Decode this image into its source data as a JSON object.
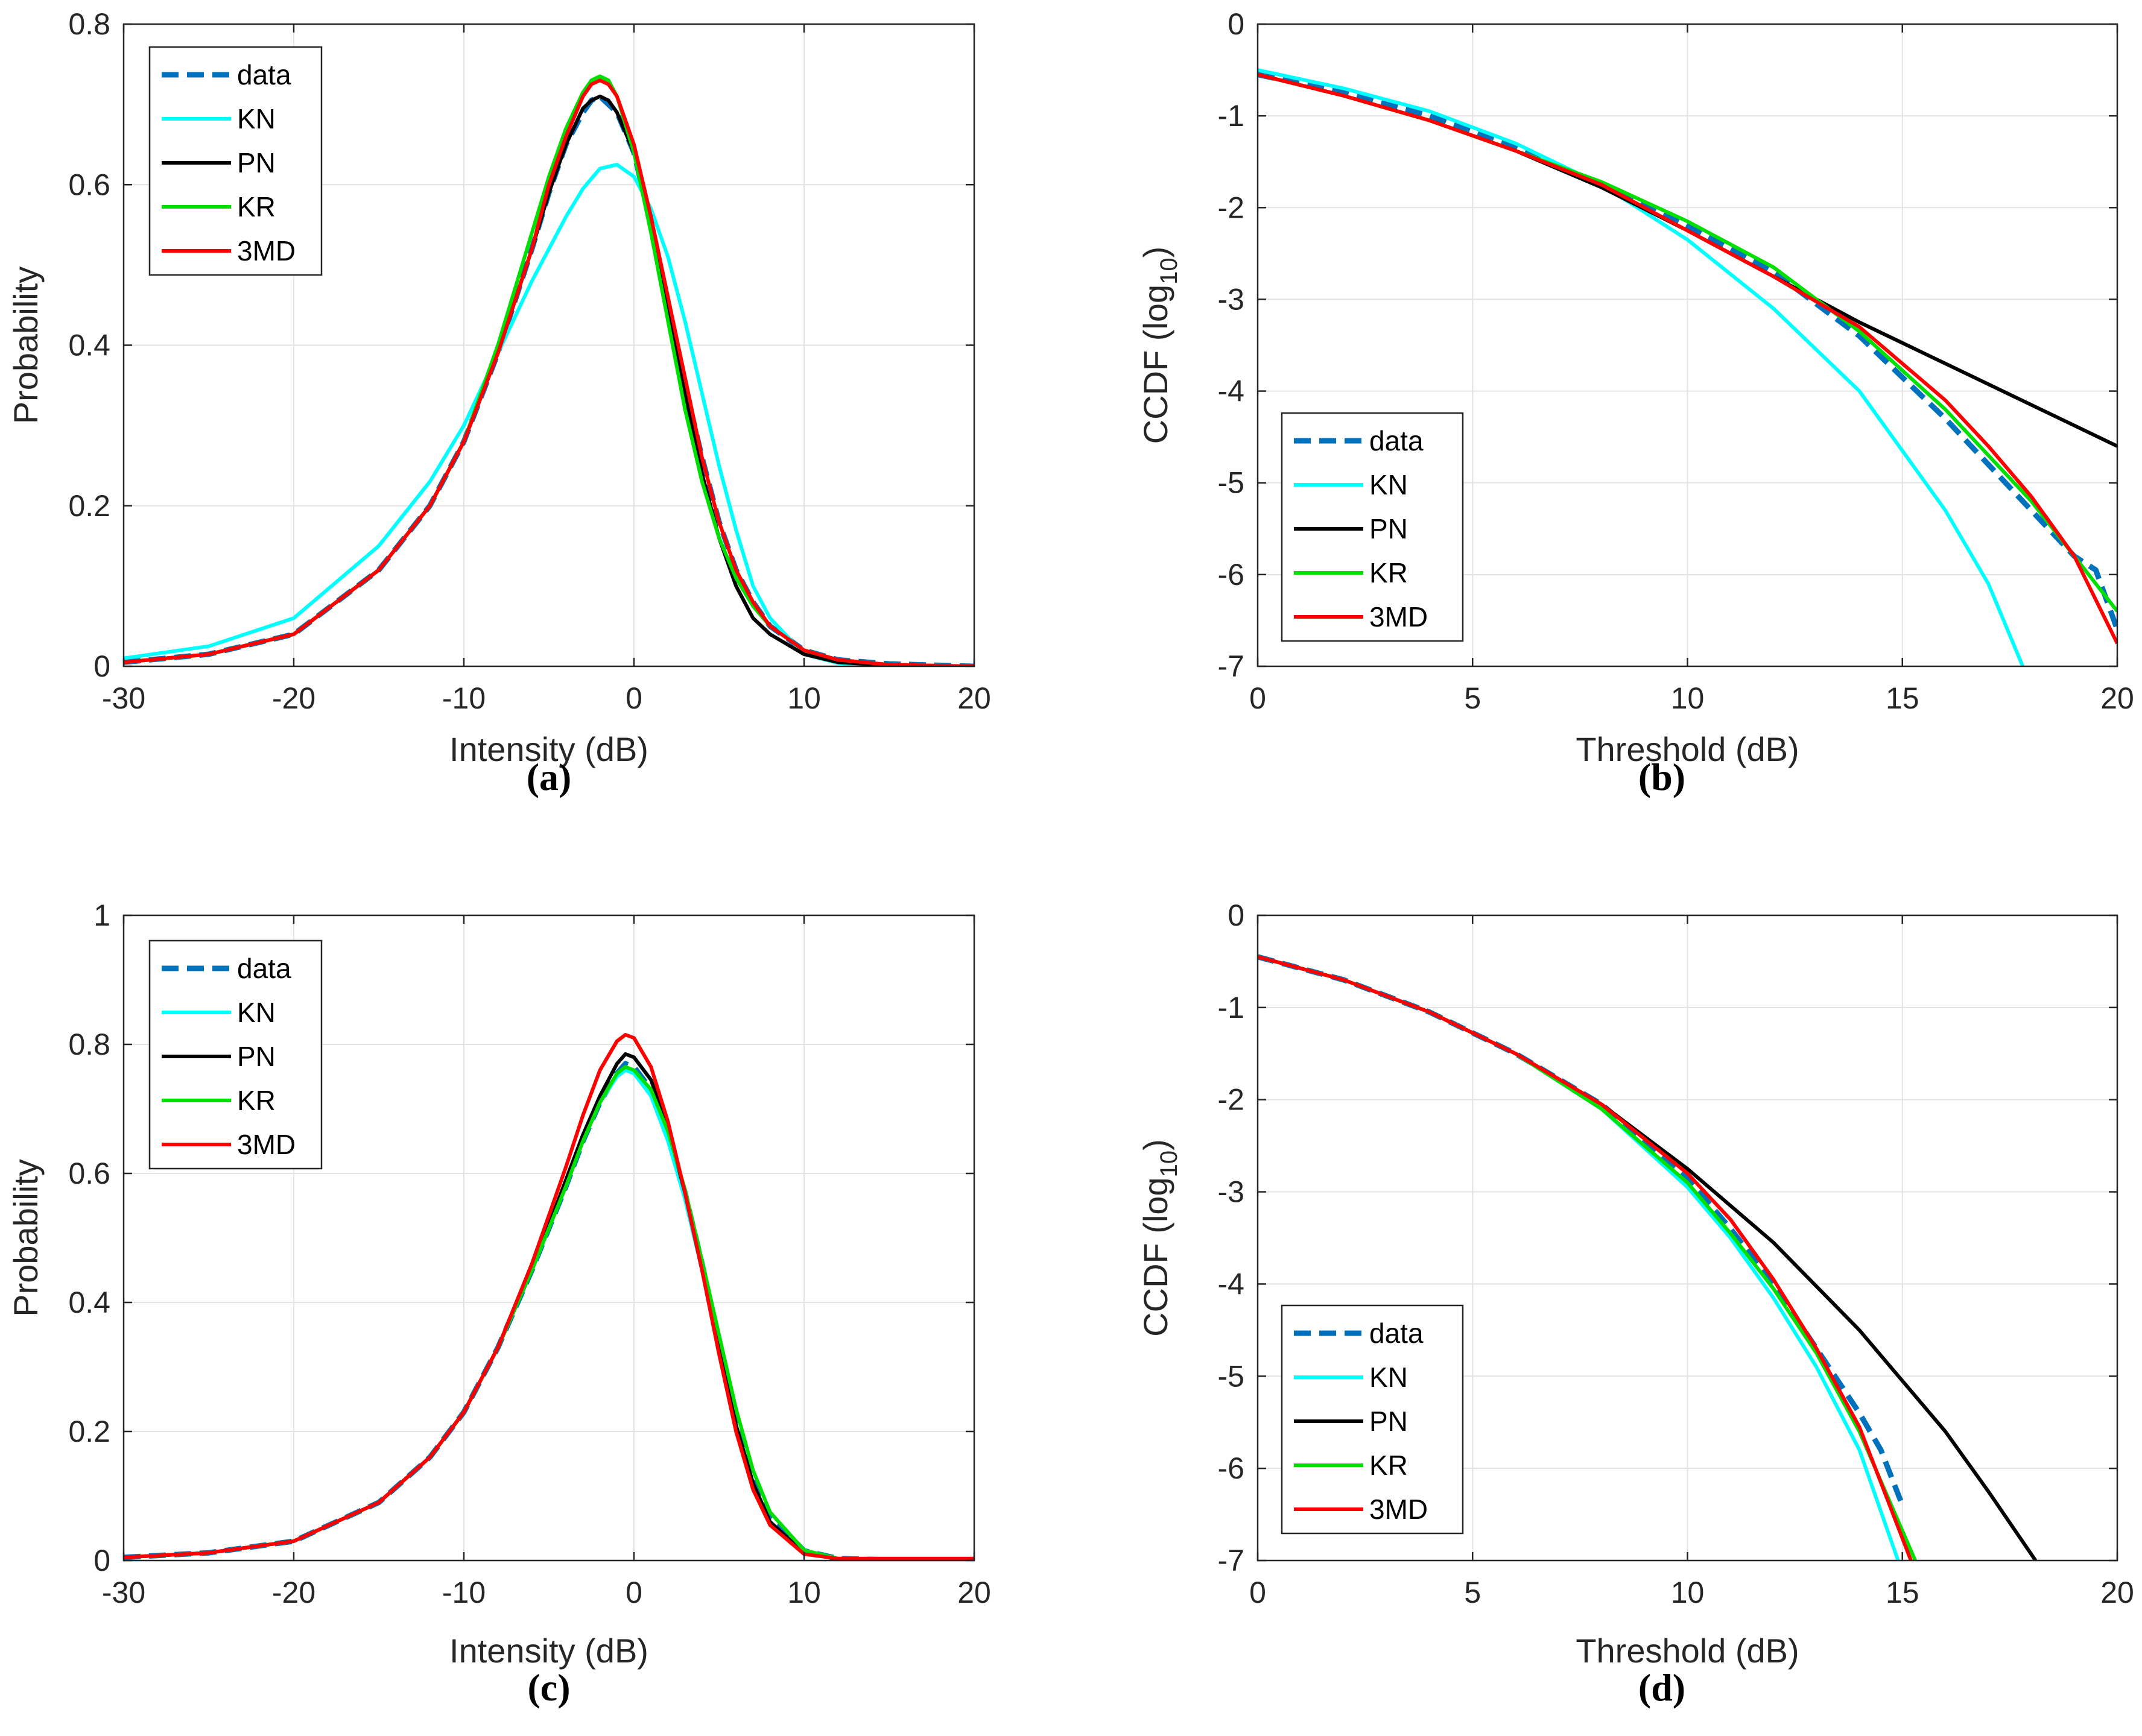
{
  "colors": {
    "data": "#0072BD",
    "KN": "#00FFFF",
    "PN": "#000000",
    "KR": "#00E000",
    "3MD": "#FF0000"
  },
  "chart_data": [
    {
      "panel": "(a)",
      "type": "line",
      "xlabel": "Intensity (dB)",
      "ylabel": "Probability",
      "xlim": [
        -30,
        20
      ],
      "ylim": [
        0,
        0.8
      ],
      "xticks": [
        -30,
        -20,
        -10,
        0,
        10,
        20
      ],
      "yticks": [
        0,
        0.2,
        0.4,
        0.6,
        0.8
      ],
      "xtick_labels": [
        "-30",
        "-20",
        "-10",
        "0",
        "10",
        "20"
      ],
      "ytick_labels": [
        "0",
        "0.2",
        "0.4",
        "0.6",
        "0.8"
      ],
      "grid": true,
      "legend_position": "top-left",
      "legend": [
        "data",
        "KN",
        "PN",
        "KR",
        "3MD"
      ],
      "series": [
        {
          "name": "data",
          "style": "dashed",
          "x": [
            -30,
            -25,
            -20,
            -15,
            -12,
            -10,
            -8,
            -6,
            -5,
            -4,
            -3,
            -2.5,
            -2,
            -1.5,
            -1,
            0,
            1,
            2,
            3,
            4,
            5,
            6,
            7,
            8,
            10,
            12,
            15,
            20
          ],
          "y": [
            0.005,
            0.015,
            0.04,
            0.12,
            0.2,
            0.28,
            0.39,
            0.52,
            0.59,
            0.65,
            0.69,
            0.705,
            0.71,
            0.7,
            0.69,
            0.64,
            0.55,
            0.45,
            0.35,
            0.26,
            0.18,
            0.12,
            0.08,
            0.05,
            0.02,
            0.008,
            0.003,
            0.0
          ]
        },
        {
          "name": "KN",
          "style": "solid",
          "x": [
            -30,
            -25,
            -20,
            -15,
            -12,
            -10,
            -8,
            -6,
            -4,
            -3,
            -2,
            -1,
            0,
            1,
            2,
            3,
            4,
            5,
            6,
            7,
            8,
            10,
            12,
            15,
            20
          ],
          "y": [
            0.01,
            0.025,
            0.06,
            0.15,
            0.23,
            0.3,
            0.39,
            0.48,
            0.56,
            0.595,
            0.62,
            0.625,
            0.61,
            0.57,
            0.51,
            0.43,
            0.34,
            0.25,
            0.17,
            0.1,
            0.06,
            0.015,
            0.004,
            0.001,
            0.0
          ]
        },
        {
          "name": "PN",
          "style": "solid",
          "x": [
            -30,
            -25,
            -20,
            -15,
            -12,
            -10,
            -8,
            -6,
            -5,
            -4,
            -3,
            -2.5,
            -2,
            -1.5,
            -1,
            0,
            1,
            2,
            3,
            4,
            5,
            6,
            7,
            8,
            10,
            12,
            15,
            20
          ],
          "y": [
            0.005,
            0.015,
            0.04,
            0.12,
            0.2,
            0.28,
            0.39,
            0.52,
            0.59,
            0.65,
            0.695,
            0.705,
            0.71,
            0.705,
            0.69,
            0.64,
            0.56,
            0.45,
            0.34,
            0.24,
            0.16,
            0.1,
            0.06,
            0.04,
            0.015,
            0.005,
            0.001,
            0.0
          ]
        },
        {
          "name": "KR",
          "style": "solid",
          "x": [
            -30,
            -25,
            -20,
            -15,
            -12,
            -10,
            -8,
            -6,
            -5,
            -4,
            -3,
            -2.5,
            -2,
            -1.5,
            -1,
            0,
            1,
            2,
            3,
            4,
            5,
            6,
            7,
            8,
            10,
            12,
            15,
            20
          ],
          "y": [
            0.005,
            0.015,
            0.04,
            0.12,
            0.2,
            0.28,
            0.4,
            0.54,
            0.61,
            0.67,
            0.715,
            0.73,
            0.735,
            0.73,
            0.71,
            0.64,
            0.54,
            0.43,
            0.32,
            0.23,
            0.16,
            0.11,
            0.075,
            0.05,
            0.02,
            0.008,
            0.002,
            0.0
          ]
        },
        {
          "name": "3MD",
          "style": "solid",
          "x": [
            -30,
            -25,
            -20,
            -15,
            -12,
            -10,
            -8,
            -6,
            -5,
            -4,
            -3,
            -2.5,
            -2,
            -1.5,
            -1,
            0,
            1,
            2,
            3,
            4,
            5,
            6,
            7,
            8,
            10,
            12,
            15,
            20
          ],
          "y": [
            0.005,
            0.015,
            0.04,
            0.12,
            0.2,
            0.28,
            0.39,
            0.52,
            0.6,
            0.66,
            0.71,
            0.725,
            0.73,
            0.725,
            0.71,
            0.65,
            0.56,
            0.46,
            0.36,
            0.26,
            0.18,
            0.12,
            0.08,
            0.05,
            0.02,
            0.008,
            0.002,
            0.0
          ]
        }
      ]
    },
    {
      "panel": "(b)",
      "type": "line",
      "xlabel": "Threshold (dB)",
      "ylabel_main": "CCDF (log",
      "ylabel_sub": "10",
      "ylabel_end": ")",
      "xlim": [
        0,
        20
      ],
      "ylim": [
        -7,
        0
      ],
      "xticks": [
        0,
        5,
        10,
        15,
        20
      ],
      "yticks": [
        -7,
        -6,
        -5,
        -4,
        -3,
        -2,
        -1,
        0
      ],
      "xtick_labels": [
        "0",
        "5",
        "10",
        "15",
        "20"
      ],
      "ytick_labels": [
        "-7",
        "-6",
        "-5",
        "-4",
        "-3",
        "-2",
        "-1",
        "0"
      ],
      "grid": true,
      "legend_position": "bottom-left",
      "legend": [
        "data",
        "KN",
        "PN",
        "KR",
        "3MD"
      ],
      "series": [
        {
          "name": "data",
          "style": "dashed",
          "x": [
            0,
            2,
            4,
            6,
            8,
            10,
            12,
            14,
            16,
            17,
            18,
            19,
            19.5,
            20
          ],
          "y": [
            -0.55,
            -0.75,
            -1.0,
            -1.35,
            -1.75,
            -2.2,
            -2.7,
            -3.4,
            -4.3,
            -4.8,
            -5.3,
            -5.8,
            -5.95,
            -6.6
          ]
        },
        {
          "name": "KN",
          "style": "solid",
          "x": [
            0,
            2,
            4,
            6,
            8,
            10,
            12,
            14,
            16,
            17,
            17.8
          ],
          "y": [
            -0.5,
            -0.7,
            -0.95,
            -1.3,
            -1.75,
            -2.35,
            -3.1,
            -4.0,
            -5.3,
            -6.1,
            -7.0
          ]
        },
        {
          "name": "PN",
          "style": "solid",
          "x": [
            0,
            2,
            4,
            6,
            8,
            10,
            12,
            14,
            16,
            18,
            20
          ],
          "y": [
            -0.55,
            -0.78,
            -1.05,
            -1.38,
            -1.78,
            -2.25,
            -2.75,
            -3.25,
            -3.7,
            -4.15,
            -4.6
          ]
        },
        {
          "name": "KR",
          "style": "solid",
          "x": [
            0,
            2,
            4,
            6,
            8,
            10,
            12,
            14,
            16,
            18,
            20
          ],
          "y": [
            -0.55,
            -0.78,
            -1.05,
            -1.38,
            -1.72,
            -2.15,
            -2.65,
            -3.35,
            -4.2,
            -5.2,
            -6.4
          ]
        },
        {
          "name": "3MD",
          "style": "solid",
          "x": [
            0,
            2,
            4,
            6,
            8,
            10,
            12,
            14,
            16,
            17,
            18,
            19,
            20
          ],
          "y": [
            -0.55,
            -0.78,
            -1.05,
            -1.38,
            -1.75,
            -2.25,
            -2.75,
            -3.3,
            -4.1,
            -4.6,
            -5.15,
            -5.8,
            -6.75
          ]
        }
      ]
    },
    {
      "panel": "(c)",
      "type": "line",
      "xlabel": "Intensity (dB)",
      "ylabel": "Probability",
      "xlim": [
        -30,
        20
      ],
      "ylim": [
        0,
        1
      ],
      "xticks": [
        -30,
        -20,
        -10,
        0,
        10,
        20
      ],
      "yticks": [
        0,
        0.2,
        0.4,
        0.6,
        0.8,
        1
      ],
      "xtick_labels": [
        "-30",
        "-20",
        "-10",
        "0",
        "10",
        "20"
      ],
      "ytick_labels": [
        "0",
        "0.2",
        "0.4",
        "0.6",
        "0.8",
        "1"
      ],
      "grid": true,
      "legend_position": "top-left",
      "legend": [
        "data",
        "KN",
        "PN",
        "KR",
        "3MD"
      ],
      "series": [
        {
          "name": "data",
          "style": "dashed",
          "x": [
            -30,
            -25,
            -20,
            -15,
            -12,
            -10,
            -8,
            -6,
            -4,
            -3,
            -2,
            -1,
            -0.5,
            0,
            1,
            2,
            3,
            4,
            5,
            6,
            7,
            8,
            10,
            12,
            15,
            20
          ],
          "y": [
            0.005,
            0.012,
            0.03,
            0.09,
            0.16,
            0.23,
            0.33,
            0.45,
            0.58,
            0.65,
            0.71,
            0.755,
            0.77,
            0.765,
            0.73,
            0.66,
            0.57,
            0.46,
            0.34,
            0.22,
            0.13,
            0.07,
            0.015,
            0.003,
            0.001,
            0.0
          ]
        },
        {
          "name": "KN",
          "style": "solid",
          "x": [
            -30,
            -25,
            -20,
            -15,
            -12,
            -10,
            -8,
            -6,
            -4,
            -3,
            -2,
            -1,
            -0.5,
            0,
            1,
            2,
            3,
            4,
            5,
            6,
            7,
            8,
            10,
            12,
            15,
            20
          ],
          "y": [
            0.005,
            0.012,
            0.03,
            0.09,
            0.16,
            0.23,
            0.33,
            0.45,
            0.58,
            0.65,
            0.71,
            0.75,
            0.76,
            0.755,
            0.72,
            0.65,
            0.56,
            0.45,
            0.33,
            0.21,
            0.12,
            0.06,
            0.012,
            0.002,
            0.0,
            0.0
          ]
        },
        {
          "name": "PN",
          "style": "solid",
          "x": [
            -30,
            -25,
            -20,
            -15,
            -12,
            -10,
            -8,
            -6,
            -4,
            -3,
            -2,
            -1,
            -0.5,
            0,
            1,
            2,
            3,
            4,
            5,
            6,
            7,
            8,
            10,
            12,
            15,
            20
          ],
          "y": [
            0.005,
            0.012,
            0.03,
            0.09,
            0.16,
            0.23,
            0.33,
            0.45,
            0.59,
            0.66,
            0.72,
            0.77,
            0.785,
            0.78,
            0.745,
            0.67,
            0.57,
            0.45,
            0.33,
            0.21,
            0.12,
            0.06,
            0.012,
            0.002,
            0.0,
            0.0
          ]
        },
        {
          "name": "KR",
          "style": "solid",
          "x": [
            -30,
            -25,
            -20,
            -15,
            -12,
            -10,
            -8,
            -6,
            -4,
            -3,
            -2,
            -1,
            -0.5,
            0,
            1,
            2,
            3,
            4,
            5,
            6,
            7,
            8,
            10,
            12,
            15,
            20
          ],
          "y": [
            0.005,
            0.012,
            0.03,
            0.09,
            0.16,
            0.23,
            0.33,
            0.45,
            0.58,
            0.65,
            0.71,
            0.755,
            0.765,
            0.76,
            0.73,
            0.665,
            0.575,
            0.465,
            0.35,
            0.235,
            0.14,
            0.075,
            0.016,
            0.003,
            0.0,
            0.0
          ]
        },
        {
          "name": "3MD",
          "style": "solid",
          "x": [
            -30,
            -25,
            -20,
            -15,
            -12,
            -10,
            -8,
            -6,
            -4,
            -3,
            -2,
            -1,
            -0.5,
            0,
            1,
            2,
            3,
            4,
            5,
            6,
            7,
            8,
            10,
            12,
            15,
            20
          ],
          "y": [
            0.005,
            0.012,
            0.03,
            0.09,
            0.16,
            0.23,
            0.33,
            0.46,
            0.61,
            0.69,
            0.76,
            0.805,
            0.815,
            0.81,
            0.765,
            0.68,
            0.57,
            0.45,
            0.32,
            0.2,
            0.11,
            0.055,
            0.01,
            0.003,
            0.003,
            0.003
          ]
        }
      ]
    },
    {
      "panel": "(d)",
      "type": "line",
      "xlabel": "Threshold (dB)",
      "ylabel_main": "CCDF (log",
      "ylabel_sub": "10",
      "ylabel_end": ")",
      "xlim": [
        0,
        20
      ],
      "ylim": [
        -7,
        0
      ],
      "xticks": [
        0,
        5,
        10,
        15,
        20
      ],
      "yticks": [
        -7,
        -6,
        -5,
        -4,
        -3,
        -2,
        -1,
        0
      ],
      "xtick_labels": [
        "0",
        "5",
        "10",
        "15",
        "20"
      ],
      "ytick_labels": [
        "-7",
        "-6",
        "-5",
        "-4",
        "-3",
        "-2",
        "-1",
        "0"
      ],
      "grid": true,
      "legend_position": "bottom-left",
      "legend": [
        "data",
        "KN",
        "PN",
        "KR",
        "3MD"
      ],
      "series": [
        {
          "name": "data",
          "style": "dashed",
          "x": [
            0,
            2,
            4,
            6,
            8,
            10,
            11,
            12,
            13,
            14,
            14.5,
            15
          ],
          "y": [
            -0.45,
            -0.7,
            -1.05,
            -1.5,
            -2.05,
            -2.85,
            -3.4,
            -4.0,
            -4.7,
            -5.4,
            -5.8,
            -6.4
          ]
        },
        {
          "name": "KN",
          "style": "solid",
          "x": [
            0,
            2,
            4,
            6,
            8,
            10,
            11,
            12,
            13,
            14,
            14.9
          ],
          "y": [
            -0.45,
            -0.7,
            -1.05,
            -1.5,
            -2.1,
            -2.95,
            -3.5,
            -4.15,
            -4.9,
            -5.8,
            -7.0
          ]
        },
        {
          "name": "PN",
          "style": "solid",
          "x": [
            0,
            2,
            4,
            6,
            8,
            10,
            12,
            14,
            16,
            17,
            18.1
          ],
          "y": [
            -0.45,
            -0.7,
            -1.05,
            -1.5,
            -2.05,
            -2.75,
            -3.55,
            -4.5,
            -5.6,
            -6.25,
            -7.0
          ]
        },
        {
          "name": "KR",
          "style": "solid",
          "x": [
            0,
            2,
            4,
            6,
            8,
            10,
            11,
            12,
            13,
            14,
            15.3
          ],
          "y": [
            -0.45,
            -0.7,
            -1.05,
            -1.5,
            -2.1,
            -2.9,
            -3.45,
            -4.05,
            -4.75,
            -5.6,
            -7.0
          ]
        },
        {
          "name": "3MD",
          "style": "solid",
          "x": [
            0,
            2,
            4,
            6,
            8,
            10,
            11,
            12,
            13,
            14,
            15.2
          ],
          "y": [
            -0.45,
            -0.7,
            -1.05,
            -1.5,
            -2.05,
            -2.8,
            -3.3,
            -3.95,
            -4.7,
            -5.55,
            -7.0
          ]
        }
      ]
    }
  ]
}
